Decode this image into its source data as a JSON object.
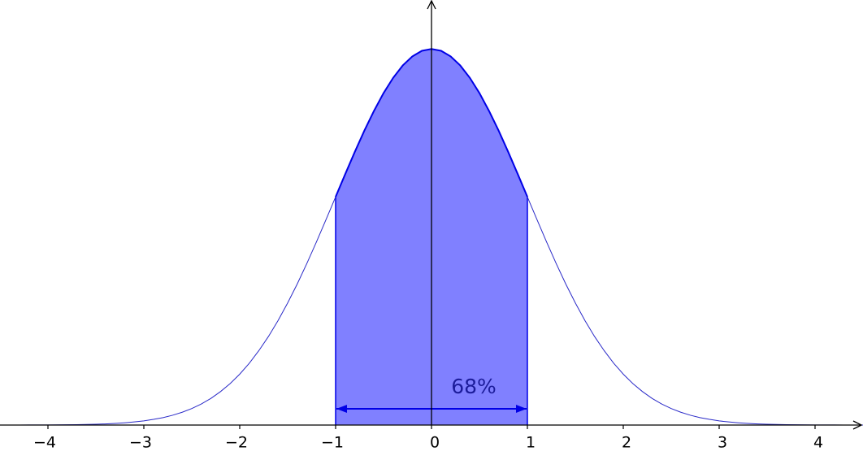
{
  "chart_data": {
    "type": "area",
    "x": [
      -4.5,
      -4.4,
      -4.3,
      -4.2,
      -4.1,
      -4,
      -3.9,
      -3.8,
      -3.7,
      -3.6,
      -3.5,
      -3.4,
      -3.3,
      -3.2,
      -3.1,
      -3,
      -2.9,
      -2.8,
      -2.7,
      -2.6,
      -2.5,
      -2.4,
      -2.3,
      -2.2,
      -2.1,
      -2,
      -1.9,
      -1.8,
      -1.7,
      -1.6,
      -1.5,
      -1.4,
      -1.3,
      -1.2,
      -1.1,
      -1,
      -0.9,
      -0.8,
      -0.7,
      -0.6,
      -0.5,
      -0.4,
      -0.3,
      -0.2,
      -0.1,
      0,
      0.1,
      0.2,
      0.3,
      0.4,
      0.5,
      0.6,
      0.7,
      0.8,
      0.9,
      1,
      1.1,
      1.2,
      1.3,
      1.4,
      1.5,
      1.6,
      1.7,
      1.8,
      1.9,
      2,
      2.1,
      2.2,
      2.3,
      2.4,
      2.5,
      2.6,
      2.7,
      2.8,
      2.9,
      3,
      3.1,
      3.2,
      3.3,
      3.4,
      3.5,
      3.6,
      3.7,
      3.8,
      3.9,
      4,
      4.1,
      4.2,
      4.3,
      4.4,
      4.5
    ],
    "values": [
      0,
      0,
      0,
      0.0001,
      0.0001,
      0.0001,
      0.0002,
      0.0003,
      0.0004,
      0.0006,
      0.0009,
      0.0012,
      0.0017,
      0.0024,
      0.0033,
      0.0044,
      0.006,
      0.0079,
      0.0104,
      0.0136,
      0.0175,
      0.0224,
      0.0283,
      0.0355,
      0.044,
      0.054,
      0.0656,
      0.079,
      0.094,
      0.1109,
      0.1295,
      0.1497,
      0.1714,
      0.1942,
      0.2179,
      0.242,
      0.2661,
      0.2897,
      0.3123,
      0.3332,
      0.3521,
      0.3683,
      0.3814,
      0.391,
      0.397,
      0.3989,
      0.397,
      0.391,
      0.3814,
      0.3683,
      0.3521,
      0.3332,
      0.3123,
      0.2897,
      0.2661,
      0.242,
      0.2179,
      0.1942,
      0.1714,
      0.1497,
      0.1295,
      0.1109,
      0.094,
      0.079,
      0.0656,
      0.054,
      0.044,
      0.0355,
      0.0283,
      0.0224,
      0.0175,
      0.0136,
      0.0104,
      0.0079,
      0.006,
      0.0044,
      0.0033,
      0.0024,
      0.0017,
      0.0012,
      0.0009,
      0.0006,
      0.0004,
      0.0003,
      0.0002,
      0.0001,
      0.0001,
      0.0001,
      0,
      0,
      0
    ],
    "color": "#2a2ac8",
    "xlim": [
      -4.5,
      4.5
    ],
    "ylim": [
      0,
      0.45
    ],
    "xticks": [
      {
        "value": -4,
        "label": "−4"
      },
      {
        "value": -3,
        "label": "−3"
      },
      {
        "value": -2,
        "label": "−2"
      },
      {
        "value": -1,
        "label": "−1"
      },
      0,
      1,
      2,
      3,
      4
    ],
    "shade": {
      "from": -1,
      "to": 1,
      "label": "68%",
      "color": "#8080ff",
      "edge": "#0000e6"
    }
  }
}
